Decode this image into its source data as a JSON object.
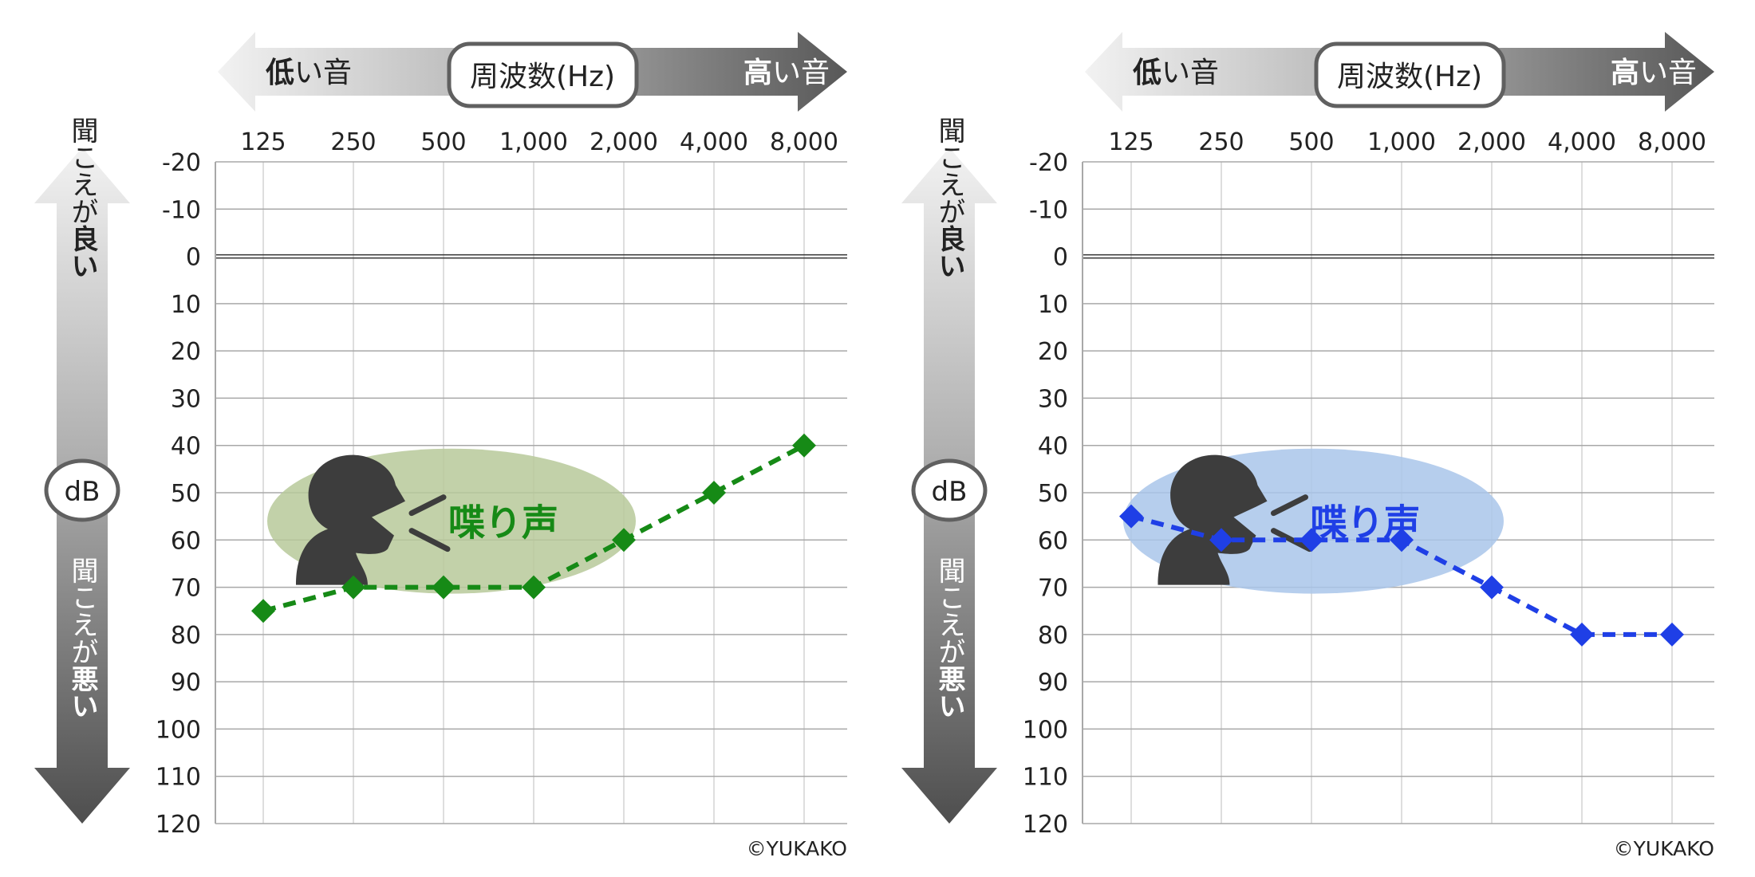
{
  "freq_axis": {
    "low_bold": "低",
    "low_rest": "い音",
    "title": "周波数(Hz)",
    "high_bold": "高",
    "high_rest": "い音"
  },
  "db_axis": {
    "label": "dB",
    "top_rest": "聞こえが",
    "top_bold": "良い",
    "bottom_rest": "聞こえが",
    "bottom_bold": "悪い"
  },
  "speech_label": "喋り声",
  "copyright": "©YUKAKO",
  "colors": {
    "left_series": "#168a16",
    "left_zone": "#b7c99a",
    "right_series": "#1f3fe6",
    "right_zone": "#a9c6ea",
    "silhouette": "#3d3d3d"
  },
  "chart_data": [
    {
      "type": "line",
      "categories": [
        "125",
        "250",
        "500",
        "1,000",
        "2,000",
        "4,000",
        "8,000"
      ],
      "y_ticks": [
        "-20",
        "-10",
        "0",
        "10",
        "20",
        "30",
        "40",
        "50",
        "60",
        "70",
        "80",
        "90",
        "100",
        "110",
        "120"
      ],
      "ylim": [
        -20,
        120
      ],
      "y_inverted": true,
      "grid": true,
      "series": [
        {
          "values": [
            75,
            70,
            70,
            70,
            60,
            50,
            40
          ],
          "marker": "diamond",
          "style": "dashed",
          "color": "#168a16"
        }
      ],
      "zone": {
        "label": "喋り声",
        "x_range": [
          "125",
          "2,000"
        ],
        "y_range": [
          40,
          70
        ],
        "color": "#b7c99a"
      }
    },
    {
      "type": "line",
      "categories": [
        "125",
        "250",
        "500",
        "1,000",
        "2,000",
        "4,000",
        "8,000"
      ],
      "y_ticks": [
        "-20",
        "-10",
        "0",
        "10",
        "20",
        "30",
        "40",
        "50",
        "60",
        "70",
        "80",
        "90",
        "100",
        "110",
        "120"
      ],
      "ylim": [
        -20,
        120
      ],
      "y_inverted": true,
      "grid": true,
      "series": [
        {
          "values": [
            55,
            60,
            60,
            60,
            70,
            80,
            80
          ],
          "marker": "diamond",
          "style": "dashed",
          "color": "#1f3fe6"
        }
      ],
      "zone": {
        "label": "喋り声",
        "x_range": [
          "125",
          "2,000"
        ],
        "y_range": [
          40,
          70
        ],
        "color": "#a9c6ea"
      }
    }
  ]
}
